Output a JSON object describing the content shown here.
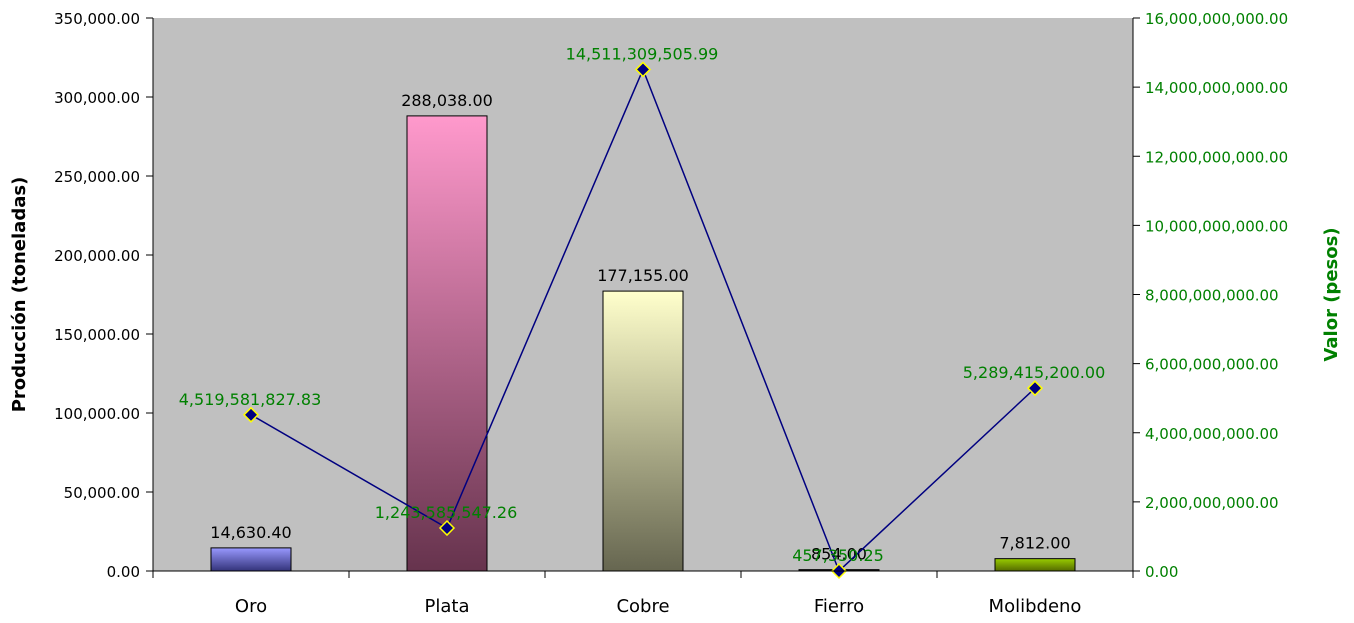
{
  "chart_data": {
    "type": "bar",
    "categories": [
      "Oro",
      "Plata",
      "Cobre",
      "Fierro",
      "Molibdeno"
    ],
    "series": [
      {
        "name": "Producción",
        "kind": "bar",
        "axis": "left",
        "values": [
          14630.4,
          288038.0,
          177155.0,
          854.0,
          7812.0
        ],
        "value_labels": [
          "14,630.40",
          "288,038.00",
          "177,155.00",
          "854.00",
          "7,812.00"
        ],
        "colors_top": [
          "#9999ff",
          "#ff99cc",
          "#ffffcc",
          "#222222",
          "#99cc00"
        ],
        "colors_bottom": [
          "#33337a",
          "#66334d",
          "#666650",
          "#000000",
          "#556b00"
        ]
      },
      {
        "name": "Valor",
        "kind": "line",
        "axis": "right",
        "values": [
          4519581827.83,
          1243585547.26,
          14511309505.99,
          457350.25,
          5289415200.0
        ],
        "value_labels": [
          "4,519,581,827.83",
          "1,243,585,547.26",
          "14,511,309,505.99",
          "457,350.25",
          "5,289,415,200.00"
        ],
        "line_color": "#000080",
        "marker_color": "#000080",
        "marker_edge": "#ffff00",
        "label_color": "#008000"
      }
    ],
    "ylabel": "Producción (toneladas)",
    "y2label": "Valor (pesos)",
    "ylim": [
      0,
      350000
    ],
    "y2lim": [
      0,
      16000000000
    ],
    "yticks": [
      "0.00",
      "50,000.00",
      "100,000.00",
      "150,000.00",
      "200,000.00",
      "250,000.00",
      "300,000.00",
      "350,000.00"
    ],
    "y2ticks": [
      "0.00",
      "2,000,000,000.00",
      "4,000,000,000.00",
      "6,000,000,000.00",
      "8,000,000,000.00",
      "10,000,000,000.00",
      "12,000,000,000.00",
      "14,000,000,000.00",
      "16,000,000,000.00"
    ],
    "plot_background": "#c0c0c0",
    "grid": false,
    "legend": "none"
  }
}
